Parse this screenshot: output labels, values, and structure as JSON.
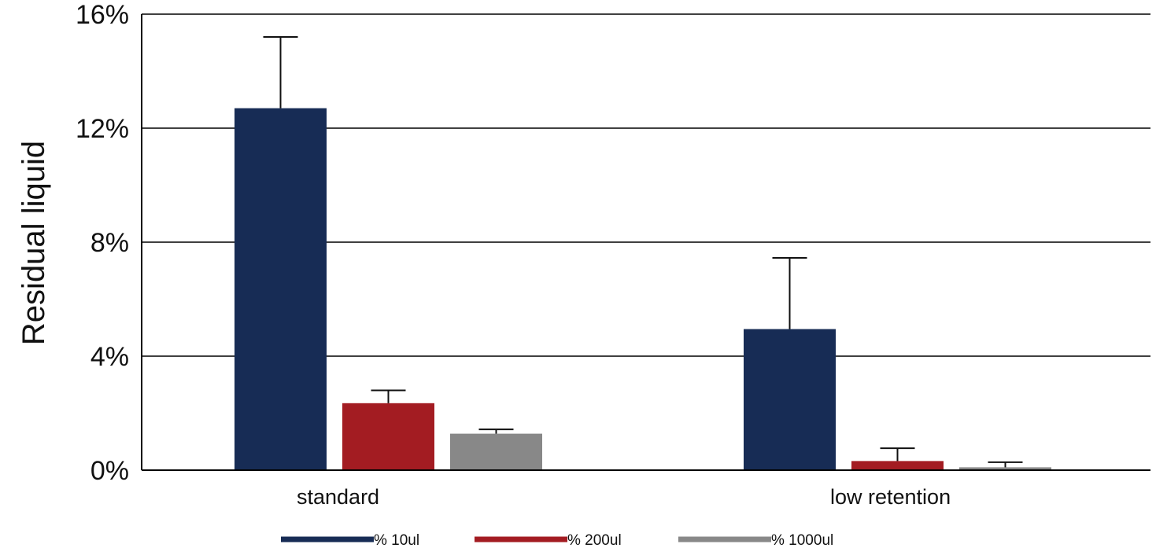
{
  "chart_data": {
    "type": "bar",
    "title": "",
    "xlabel": "",
    "ylabel": "Residual liquid",
    "categories": [
      "standard",
      "low retention"
    ],
    "series": [
      {
        "name": "% 10ul",
        "values": [
          12.7,
          4.95
        ],
        "errors": [
          2.5,
          2.5
        ],
        "color": "#172c55"
      },
      {
        "name": "% 200ul",
        "values": [
          2.35,
          0.32
        ],
        "errors": [
          0.45,
          0.45
        ],
        "color": "#a31c22"
      },
      {
        "name": "% 1000ul",
        "values": [
          1.28,
          0.1
        ],
        "errors": [
          0.15,
          0.18
        ],
        "color": "#888888"
      }
    ],
    "ylim": [
      0,
      16
    ],
    "yticks": [
      0,
      4,
      8,
      12,
      16
    ],
    "ytick_labels": [
      "0%",
      "4%",
      "8%",
      "12%",
      "16%"
    ],
    "grid": true,
    "legend_position": "bottom",
    "colors": {
      "axis": "#000000",
      "grid": "#000000"
    }
  }
}
